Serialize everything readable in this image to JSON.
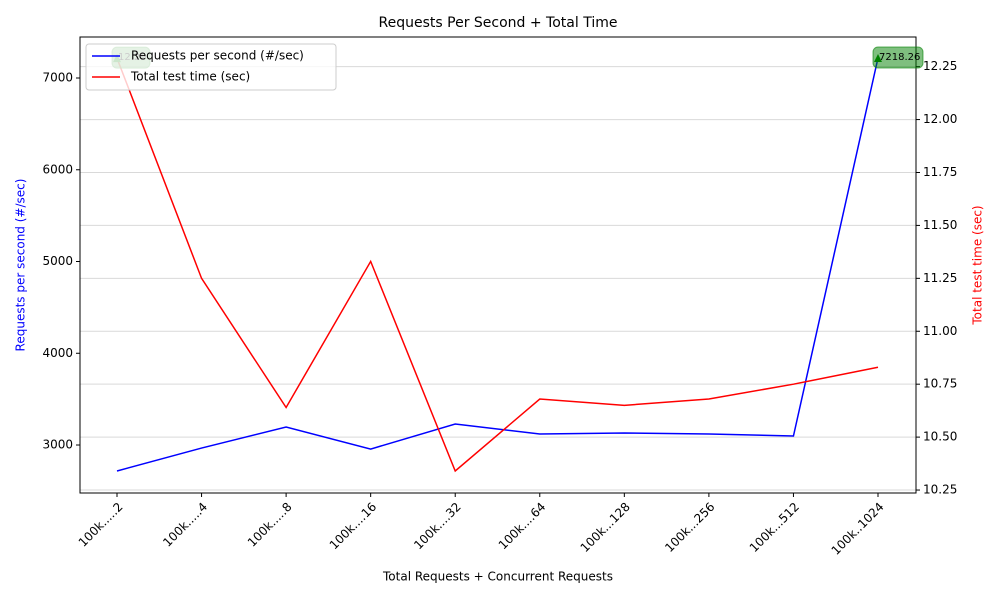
{
  "chart_data": {
    "type": "line",
    "title": "Requests Per Second + Total Time",
    "x_label": "Total Requests + Concurrent Requests",
    "y_label": "Requests per second (#/sec)",
    "y2_label": "Total test time (sec)",
    "categories": [
      "100k.....2",
      "100k.....4",
      "100k.....8",
      "100k....16",
      "100k....32",
      "100k....64",
      "100k...128",
      "100k...256",
      "100k...512",
      "100k..1024"
    ],
    "series": [
      {
        "name": "Requests per second (#/sec)",
        "color": "#0000ff",
        "values": [
          2717,
          2967,
          3196,
          2956,
          3229,
          3120,
          3131,
          3120,
          3098,
          7218.26
        ],
        "value_labels": [
          null,
          null,
          null,
          null,
          null,
          null,
          null,
          null,
          null,
          "7218.26"
        ]
      },
      {
        "name": "Total test time (sec)",
        "color": "#ff0000",
        "axis": "y2",
        "values": [
          12.29,
          11.25,
          10.64,
          11.33,
          10.34,
          10.68,
          10.65,
          10.68,
          10.75,
          10.83
        ],
        "value_labels": [
          "12.29",
          null,
          null,
          null,
          null,
          null,
          null,
          null,
          null,
          null
        ]
      }
    ],
    "ylim": [
      2477,
      7447
    ],
    "yticks": [
      3000,
      4000,
      5000,
      6000,
      7000
    ],
    "y2lim": [
      10.236,
      12.39
    ],
    "y2ticks": [
      10.25,
      {
        "value": 10.5,
        "label": "10.50"
      },
      10.75,
      {
        "value": 11,
        "label": "11.00"
      },
      11.25,
      {
        "value": 11.5,
        "label": "11.50"
      },
      11.75,
      {
        "value": 12,
        "label": "12.00"
      },
      12.25
    ],
    "grid": "y2",
    "legend": "upper left",
    "annotation_color": "#008000"
  }
}
